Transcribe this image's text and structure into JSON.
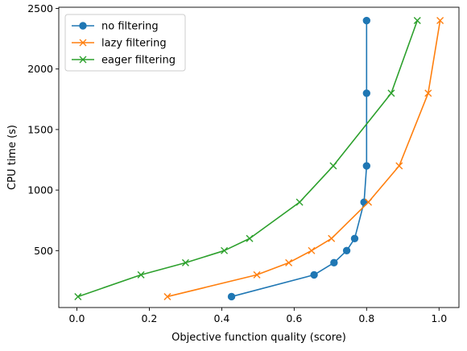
{
  "chart_data": {
    "type": "line",
    "title": "",
    "xlabel": "Objective function quality (score)",
    "ylabel": "CPU time (s)",
    "xlim": [
      -0.05,
      1.055
    ],
    "ylim": [
      30,
      2510
    ],
    "xticks": [
      0.0,
      0.2,
      0.4,
      0.6,
      0.8,
      1.0
    ],
    "xtick_labels": [
      "0.0",
      "0.2",
      "0.4",
      "0.6",
      "0.8",
      "1.0"
    ],
    "yticks": [
      500,
      1000,
      1500,
      2000,
      2500
    ],
    "ytick_labels": [
      "500",
      "1000",
      "1500",
      "2000",
      "2500"
    ],
    "grid": false,
    "legend_position": "top-left",
    "series": [
      {
        "name": "no filtering",
        "color": "#1f77b4",
        "marker": "circle",
        "points": [
          {
            "x": 0.427,
            "y": 120
          },
          {
            "x": 0.655,
            "y": 300
          },
          {
            "x": 0.71,
            "y": 400
          },
          {
            "x": 0.745,
            "y": 500
          },
          {
            "x": 0.767,
            "y": 600
          },
          {
            "x": 0.793,
            "y": 900
          },
          {
            "x": 0.8,
            "y": 1200
          },
          {
            "x": 0.8,
            "y": 1800
          },
          {
            "x": 0.8,
            "y": 2400
          }
        ]
      },
      {
        "name": "lazy filtering",
        "color": "#ff7f0e",
        "marker": "x",
        "points": [
          {
            "x": 0.25,
            "y": 120
          },
          {
            "x": 0.497,
            "y": 300
          },
          {
            "x": 0.585,
            "y": 400
          },
          {
            "x": 0.648,
            "y": 500
          },
          {
            "x": 0.703,
            "y": 600
          },
          {
            "x": 0.805,
            "y": 900
          },
          {
            "x": 0.89,
            "y": 1200
          },
          {
            "x": 0.97,
            "y": 1800
          },
          {
            "x": 1.003,
            "y": 2400
          }
        ]
      },
      {
        "name": "eager filtering",
        "color": "#2ca02c",
        "marker": "x",
        "points": [
          {
            "x": 0.003,
            "y": 120
          },
          {
            "x": 0.177,
            "y": 300
          },
          {
            "x": 0.3,
            "y": 400
          },
          {
            "x": 0.407,
            "y": 500
          },
          {
            "x": 0.477,
            "y": 600
          },
          {
            "x": 0.615,
            "y": 900
          },
          {
            "x": 0.708,
            "y": 1200
          },
          {
            "x": 0.868,
            "y": 1800
          },
          {
            "x": 0.94,
            "y": 2400
          }
        ]
      }
    ]
  }
}
